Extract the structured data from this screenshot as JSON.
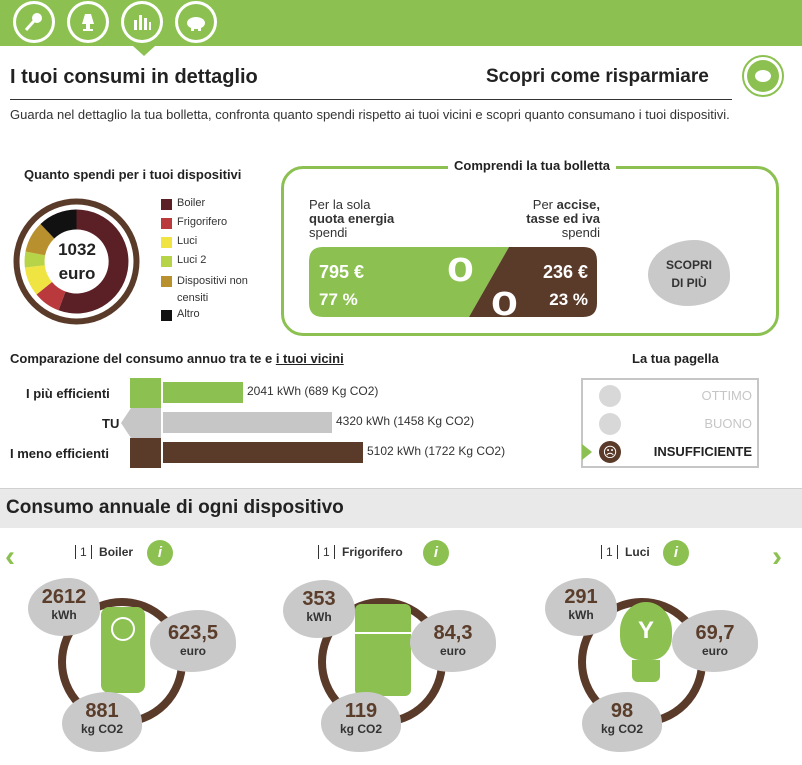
{
  "tabs": [
    {
      "icon": "microphone-icon"
    },
    {
      "icon": "lamp-icon"
    },
    {
      "icon": "bar-chart-icon",
      "active": true
    },
    {
      "icon": "piggy-bank-icon"
    }
  ],
  "header": {
    "title": "I tuoi consumi in dettaglio",
    "save_link": "Scopri come risparmiare",
    "intro": "Guarda nel dettaglio la tua bolletta, confronta quanto spendi rispetto ai tuoi vicini e scopri quanto consumano i tuoi dispositivi."
  },
  "devices_spend": {
    "title": "Quanto spendi per i tuoi dispositivi",
    "total": "1032",
    "unit": "euro",
    "legend": [
      {
        "label": "Boiler",
        "color": "#5b1f26"
      },
      {
        "label": "Frigorifero",
        "color": "#b9393c"
      },
      {
        "label": "Luci",
        "color": "#f0e442"
      },
      {
        "label": "Luci 2",
        "color": "#b7d347"
      },
      {
        "label": "Dispositivi non censiti",
        "color": "#b8902e"
      },
      {
        "label": "Altro",
        "color": "#111111"
      }
    ]
  },
  "bill": {
    "title": "Comprendi la tua bolletta",
    "left_line1": "Per la sola",
    "left_bold": "quota energia",
    "left_line3": "spendi",
    "right_line1a": "Per ",
    "right_line1b": "accise,",
    "right_bold": "tasse ed iva",
    "right_line3": "spendi",
    "left_amount": "795 €",
    "left_percent": "77 %",
    "right_amount": "236 €",
    "right_percent": "23 %",
    "more_button": "SCOPRI DI PIÙ"
  },
  "comparison": {
    "title_prefix": "Comparazione del consumo annuo tra te e ",
    "title_link": "i tuoi vicini",
    "rows": [
      {
        "label": "I più efficienti",
        "value": 2041,
        "text": "2041 kWh (689 Kg CO2)",
        "color": "#8cc152"
      },
      {
        "label": "TU",
        "value": 4320,
        "text": "4320 kWh (1458 Kg CO2)",
        "color": "#c6c6c6"
      },
      {
        "label": "I meno efficienti",
        "value": 5102,
        "text": "5102 kWh (1722 Kg CO2)",
        "color": "#5a3a29"
      }
    ]
  },
  "report": {
    "title": "La tua pagella",
    "items": [
      {
        "label": "OTTIMO",
        "active": false
      },
      {
        "label": "BUONO",
        "active": false
      },
      {
        "label": "INSUFFICIENTE",
        "active": true
      }
    ]
  },
  "annual": {
    "title": "Consumo annuale di ogni dispositivo",
    "devices": [
      {
        "count": "1",
        "name": "Boiler",
        "kwh": "2612",
        "kwh_unit": "kWh",
        "euro": "623,5",
        "euro_unit": "euro",
        "co2": "881",
        "co2_unit": "kg CO2",
        "icon": "boiler-icon"
      },
      {
        "count": "1",
        "name": "Frigorifero",
        "kwh": "353",
        "kwh_unit": "kWh",
        "euro": "84,3",
        "euro_unit": "euro",
        "co2": "119",
        "co2_unit": "kg CO2",
        "icon": "fridge-icon"
      },
      {
        "count": "1",
        "name": "Luci",
        "kwh": "291",
        "kwh_unit": "kWh",
        "euro": "69,7",
        "euro_unit": "euro",
        "co2": "98",
        "co2_unit": "kg CO2",
        "icon": "lightbulb-icon"
      }
    ]
  }
}
